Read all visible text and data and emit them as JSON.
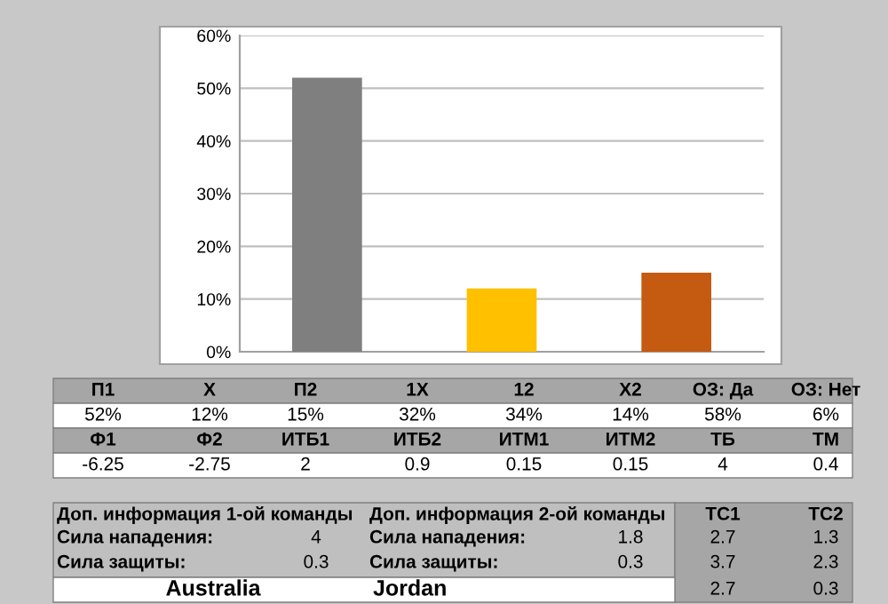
{
  "chart_data": {
    "type": "bar",
    "categories": [
      null,
      null,
      null
    ],
    "values": [
      52,
      12,
      15
    ],
    "colors": [
      "#7f7f7f",
      "#ffc000",
      "#c55a11"
    ],
    "ylim": [
      0,
      60
    ],
    "yticks": [
      {
        "value": 0,
        "label": "0%"
      },
      {
        "value": 10,
        "label": "10%"
      },
      {
        "value": 20,
        "label": "20%"
      },
      {
        "value": 30,
        "label": "30%"
      },
      {
        "value": 40,
        "label": "40%"
      },
      {
        "value": 50,
        "label": "50%"
      },
      {
        "value": 60,
        "label": "60%"
      }
    ],
    "grid": "y",
    "annotations": [
      "П1",
      "X",
      "П2",
      "1X",
      "12",
      "X2",
      "ОЗ: Да",
      "ОЗ: Нет",
      "52%",
      "12%",
      "15%",
      "32%",
      "34%",
      "14%",
      "58%",
      "6%",
      "Ф1",
      "Ф2",
      "ИТБ1",
      "ИТБ2",
      "ИТМ1",
      "ИТМ2",
      "ТБ",
      "ТМ",
      "-6.25",
      "-2.75",
      "2",
      "0.9",
      "0.15",
      "0.15",
      "4",
      "0.4",
      "Доп. информация 1-ой команды",
      "Доп. информация 2-ой команды",
      "ТС1",
      "ТС2",
      "Сила нападения:",
      "4",
      "Сила нападения:",
      "1.8",
      "2.7",
      "1.3",
      "Сила защиты:",
      "0.3",
      "Сила защиты:",
      "0.3",
      "3.7",
      "2.3",
      "Australia",
      "Jordan",
      "2.7",
      "0.3"
    ]
  }
}
